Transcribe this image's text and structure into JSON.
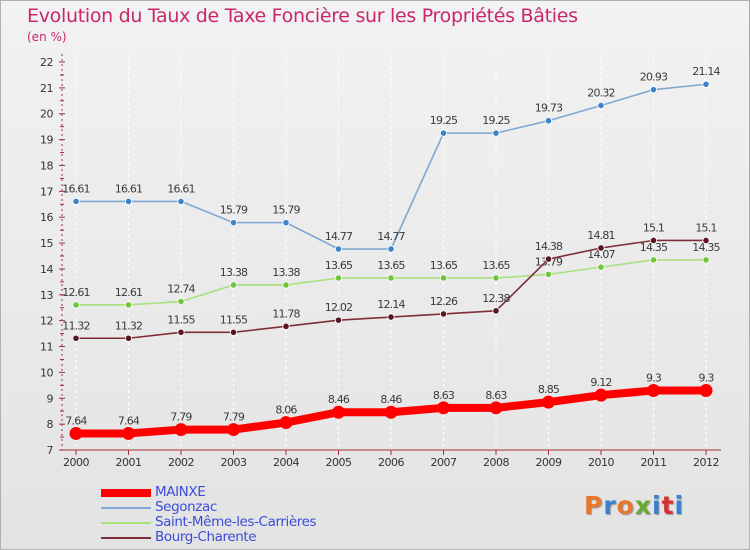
{
  "header": {
    "title": "Evolution du Taux de Taxe Foncière sur les Propriétés Bâties",
    "unit": "(en %)"
  },
  "logo": {
    "text": "Proxiti",
    "colors": [
      "#e8762b",
      "#3a7fd0",
      "#e8762b",
      "#6aa832",
      "#3a7fd0",
      "#d63030",
      "#3a7fd0"
    ]
  },
  "chart_data": {
    "type": "line",
    "title": "Evolution du Taux de Taxe Foncière sur les Propriétés Bâties",
    "ylabel": "(en %)",
    "xlabel": "",
    "x": [
      "2000",
      "2001",
      "2002",
      "2003",
      "2004",
      "2005",
      "2006",
      "2007",
      "2008",
      "2009",
      "2010",
      "2011",
      "2012"
    ],
    "ylim": [
      7,
      22
    ],
    "yticks": [
      "7",
      "8",
      "9",
      "10",
      "11",
      "12",
      "13",
      "14",
      "15",
      "16",
      "17",
      "18",
      "19",
      "20",
      "21",
      "22"
    ],
    "grid": "vertical dashed",
    "legend_position": "bottom-left",
    "series": [
      {
        "name": "MAINXE",
        "color": "#ff0000",
        "thick": true,
        "values": [
          7.64,
          7.64,
          7.79,
          7.79,
          8.06,
          8.46,
          8.46,
          8.63,
          8.63,
          8.85,
          9.12,
          9.3,
          9.3
        ],
        "labels": [
          "7.64",
          "7.64",
          "7.79",
          "7.79",
          "8.06",
          "8.46",
          "8.46",
          "8.63",
          "8.63",
          "8.85",
          "9.12",
          "9.3",
          "9.3"
        ]
      },
      {
        "name": "Segonzac",
        "color": "#7fa9d4",
        "marker": "#3d84c6",
        "values": [
          16.61,
          16.61,
          16.61,
          15.79,
          15.79,
          14.77,
          14.77,
          19.25,
          19.25,
          19.73,
          20.32,
          20.93,
          21.14
        ],
        "labels": [
          "16.61",
          "16.61",
          "16.61",
          "15.79",
          "15.79",
          "14.77",
          "14.77",
          "19.25",
          "19.25",
          "19.73",
          "20.32",
          "20.93",
          "21.14"
        ]
      },
      {
        "name": "Saint-Même-les-Carrières",
        "color": "#a8e07a",
        "marker": "#6ec43a",
        "values": [
          12.61,
          12.61,
          12.74,
          13.38,
          13.38,
          13.65,
          13.65,
          13.65,
          13.65,
          13.79,
          14.07,
          14.35,
          14.35
        ],
        "labels": [
          "12.61",
          "12.61",
          "12.74",
          "13.38",
          "13.38",
          "13.65",
          "13.65",
          "13.65",
          "13.65",
          "13.79",
          "14.07",
          "14.35",
          "14.35"
        ]
      },
      {
        "name": "Bourg-Charente",
        "color": "#7d2e3a",
        "marker": "#5a1620",
        "values": [
          11.32,
          11.32,
          11.55,
          11.55,
          11.78,
          12.02,
          12.14,
          12.26,
          12.38,
          14.38,
          14.81,
          15.1,
          15.1
        ],
        "labels": [
          "11.32",
          "11.32",
          "11.55",
          "11.55",
          "11.78",
          "12.02",
          "12.14",
          "12.26",
          "12.38",
          "14.38",
          "14.81",
          "15.1",
          "15.1"
        ]
      }
    ]
  }
}
